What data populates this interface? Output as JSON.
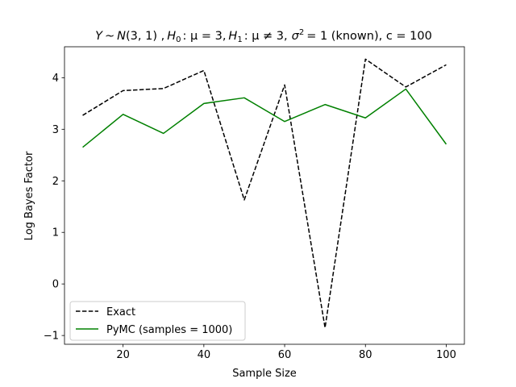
{
  "chart_data": {
    "type": "line",
    "title": "Y ~ N(3, 1) , H₀ : μ = 3, H₁ : μ ≠ 3, σ² = 1 (known), c = 100",
    "title_parts": {
      "p1": "Y",
      "p2": "~",
      "p3": "N",
      "p4": "(3, 1) ,",
      "p5": "H",
      "p5sub": "0",
      "p6": ": μ = 3,",
      "p7": "H",
      "p7sub": "1",
      "p8": ": μ ≠ 3,",
      "p9": "σ",
      "p9sup": "2",
      "p10": "= 1 (known), c = 100"
    },
    "xlabel": "Sample Size",
    "ylabel": "Log Bayes Factor",
    "xlim": [
      5.5,
      104.5
    ],
    "ylim": [
      -1.17,
      4.6
    ],
    "x_ticks": [
      20,
      40,
      60,
      80,
      100
    ],
    "y_ticks": [
      -1,
      0,
      1,
      2,
      3,
      4
    ],
    "y_tick_labels": [
      "−1",
      "0",
      "1",
      "2",
      "3",
      "4"
    ],
    "grid": false,
    "legend_position": "lower-left",
    "x": [
      10,
      20,
      30,
      40,
      50,
      60,
      70,
      80,
      90,
      100
    ],
    "series": [
      {
        "name": "Exact",
        "color": "#000000",
        "style": "dashed",
        "values": [
          3.27,
          3.75,
          3.79,
          4.14,
          1.63,
          3.86,
          -0.85,
          4.36,
          3.82,
          4.25
        ]
      },
      {
        "name": "PyMC (samples = 1000)",
        "color": "#008000",
        "style": "solid",
        "values": [
          2.65,
          3.29,
          2.92,
          3.5,
          3.61,
          3.15,
          3.48,
          3.22,
          3.78,
          2.71
        ]
      }
    ]
  }
}
